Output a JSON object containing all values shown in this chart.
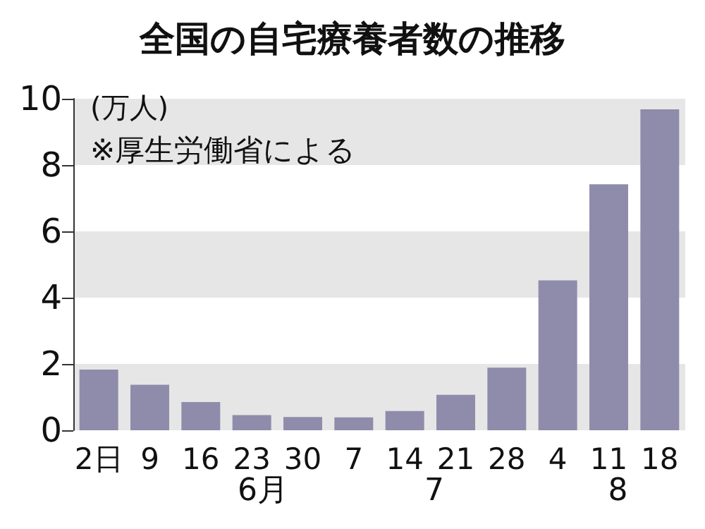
{
  "chart_data": {
    "type": "bar",
    "title": "全国の自宅療養者数の推移",
    "ylabel": "(万人)",
    "annotations": [
      "※厚生労働省による",
      "6月",
      "7",
      "8"
    ],
    "categories": [
      "2日",
      "9",
      "16",
      "23",
      "30",
      "7",
      "14",
      "21",
      "28",
      "4",
      "11",
      "18"
    ],
    "values": [
      1.83,
      1.37,
      0.85,
      0.46,
      0.4,
      0.39,
      0.58,
      1.07,
      1.89,
      4.52,
      7.42,
      9.68
    ],
    "color": "#8f8bab",
    "ylim": [
      0,
      10
    ],
    "yticks": [
      0,
      2,
      4,
      6,
      8,
      10
    ],
    "bands": [
      {
        "axis": "y",
        "from": 0,
        "to": 2,
        "color": "#e6e6e6"
      },
      {
        "axis": "y",
        "from": 4,
        "to": 6,
        "color": "#e6e6e6"
      },
      {
        "axis": "y",
        "from": 8,
        "to": 10,
        "color": "#e6e6e6"
      }
    ]
  }
}
